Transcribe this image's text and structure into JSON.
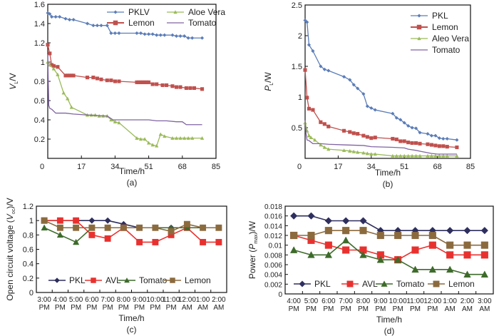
{
  "chart_data": [
    {
      "id": "a",
      "type": "line",
      "caption": "(a)",
      "title": "",
      "xlabel": "Time/h",
      "ylabel": "V_L/V",
      "ylabel_main": "V",
      "ylabel_sub": "L",
      "ylabel_suffix": "/V",
      "xlim": [
        0,
        85
      ],
      "ylim": [
        0,
        1.6
      ],
      "xticks": [
        0,
        17,
        34,
        51,
        68,
        85
      ],
      "yticks": [
        0.2,
        0.4,
        0.6,
        0.8,
        1,
        1.2,
        1.4,
        1.6
      ],
      "ytick_labels": [
        "0.2",
        "0.4",
        "0.6",
        "0.8",
        "1",
        "1.2",
        "1.4",
        "1.6"
      ],
      "legend": "top-right, 2 columns",
      "series": [
        {
          "name": "PKLV",
          "color": "#5b7db8",
          "marker": "diamond",
          "x": [
            0,
            1,
            2,
            4,
            6,
            9,
            11,
            13,
            20,
            23,
            25,
            27,
            30,
            32,
            34,
            36,
            45,
            47,
            49,
            51,
            53,
            55,
            57,
            59,
            63,
            65,
            67,
            69,
            71,
            73,
            78
          ],
          "y": [
            1.51,
            1.5,
            1.47,
            1.47,
            1.47,
            1.45,
            1.44,
            1.44,
            1.4,
            1.38,
            1.38,
            1.38,
            1.38,
            1.3,
            1.3,
            1.3,
            1.3,
            1.3,
            1.29,
            1.29,
            1.29,
            1.28,
            1.28,
            1.28,
            1.28,
            1.27,
            1.27,
            1.27,
            1.25,
            1.25,
            1.25
          ]
        },
        {
          "name": "Lemon",
          "color": "#c0504d",
          "marker": "square",
          "x": [
            0,
            1,
            2,
            3,
            5,
            9,
            10,
            11,
            12,
            13,
            20,
            23,
            25,
            27,
            30,
            32,
            34,
            36,
            45,
            46,
            47,
            48,
            49,
            50,
            51,
            53,
            55,
            58,
            60,
            63,
            65,
            67,
            70,
            72,
            74,
            78
          ],
          "y": [
            1.18,
            1.09,
            0.97,
            0.96,
            0.95,
            0.86,
            0.86,
            0.86,
            0.86,
            0.86,
            0.84,
            0.84,
            0.83,
            0.82,
            0.81,
            0.81,
            0.8,
            0.8,
            0.79,
            0.79,
            0.79,
            0.79,
            0.79,
            0.79,
            0.79,
            0.77,
            0.77,
            0.76,
            0.76,
            0.75,
            0.74,
            0.74,
            0.73,
            0.73,
            0.73,
            0.72
          ]
        },
        {
          "name": "Aloe Vera",
          "color": "#9bbb59",
          "marker": "triangle",
          "x": [
            0,
            1,
            3,
            5,
            8,
            10,
            12,
            20,
            22,
            24,
            26,
            28,
            30,
            32,
            34,
            36,
            45,
            47,
            49,
            51,
            53,
            55,
            57,
            59,
            63,
            65,
            67,
            69,
            71,
            73,
            78
          ],
          "y": [
            1.0,
            0.97,
            0.93,
            0.87,
            0.68,
            0.62,
            0.53,
            0.45,
            0.45,
            0.45,
            0.44,
            0.44,
            0.44,
            0.4,
            0.38,
            0.37,
            0.21,
            0.2,
            0.2,
            0.16,
            0.14,
            0.13,
            0.25,
            0.23,
            0.21,
            0.21,
            0.21,
            0.21,
            0.21,
            0.21,
            0.21
          ]
        },
        {
          "name": "Tomato",
          "color": "#8064a2",
          "marker": "none",
          "x": [
            0,
            0.5,
            1,
            2,
            4,
            9,
            13,
            20,
            30,
            33,
            45,
            51,
            55,
            60,
            65,
            68,
            70,
            72,
            78
          ],
          "y": [
            1.08,
            0.55,
            0.52,
            0.51,
            0.47,
            0.47,
            0.46,
            0.45,
            0.44,
            0.4,
            0.4,
            0.4,
            0.39,
            0.39,
            0.38,
            0.38,
            0.35,
            0.35,
            0.35
          ]
        }
      ]
    },
    {
      "id": "b",
      "type": "line",
      "caption": "(b)",
      "title": "",
      "xlabel": "Time/h",
      "ylabel": "P_L/W",
      "ylabel_main": "P",
      "ylabel_sub": "L",
      "ylabel_suffix": "/W",
      "xlim": [
        0,
        85
      ],
      "ylim": [
        0,
        2.5
      ],
      "xticks": [
        0,
        17,
        34,
        51,
        68,
        85
      ],
      "yticks": [
        0.5,
        1,
        1.5,
        2,
        2.5
      ],
      "ytick_labels": [
        "0.5",
        "1",
        "1.5",
        "2",
        "2.5"
      ],
      "legend": "top-right, 1 column",
      "series": [
        {
          "name": "PKL",
          "color": "#5b7db8",
          "marker": "diamond",
          "x": [
            0,
            1,
            2,
            4,
            8,
            10,
            12,
            20,
            23,
            25,
            27,
            30,
            32,
            34,
            36,
            45,
            47,
            49,
            51,
            53,
            55,
            57,
            59,
            63,
            65,
            67,
            69,
            71,
            73,
            78
          ],
          "y": [
            2.25,
            2.22,
            1.85,
            1.75,
            1.5,
            1.45,
            1.43,
            1.33,
            1.28,
            1.2,
            1.14,
            1.05,
            0.85,
            0.82,
            0.79,
            0.73,
            0.66,
            0.63,
            0.58,
            0.53,
            0.5,
            0.49,
            0.42,
            0.4,
            0.37,
            0.37,
            0.33,
            0.32,
            0.32,
            0.3
          ]
        },
        {
          "name": "Lemon",
          "color": "#c0504d",
          "marker": "square",
          "x": [
            0,
            1,
            2,
            4,
            8,
            10,
            12,
            20,
            23,
            25,
            27,
            30,
            32,
            34,
            36,
            45,
            47,
            49,
            51,
            53,
            55,
            57,
            59,
            63,
            65,
            67,
            69,
            71,
            73,
            78
          ],
          "y": [
            1.44,
            0.99,
            0.81,
            0.79,
            0.59,
            0.56,
            0.52,
            0.45,
            0.43,
            0.41,
            0.4,
            0.37,
            0.35,
            0.33,
            0.34,
            0.32,
            0.31,
            0.28,
            0.28,
            0.26,
            0.25,
            0.25,
            0.24,
            0.23,
            0.22,
            0.21,
            0.2,
            0.2,
            0.19,
            0.18
          ]
        },
        {
          "name": "Aleo Vera",
          "color": "#9bbb59",
          "marker": "triangle",
          "x": [
            0,
            1,
            2,
            3,
            5,
            8,
            10,
            12,
            20,
            23,
            25,
            27,
            30,
            32,
            34,
            36,
            45,
            47,
            49,
            51,
            53,
            55,
            57,
            59,
            63,
            65,
            67,
            69,
            71,
            73,
            78
          ],
          "y": [
            0.58,
            0.45,
            0.37,
            0.34,
            0.3,
            0.22,
            0.18,
            0.15,
            0.13,
            0.12,
            0.11,
            0.1,
            0.09,
            0.08,
            0.07,
            0.07,
            0.04,
            0.04,
            0.04,
            0.04,
            0.04,
            0.04,
            0.04,
            0.04,
            0.04,
            0.04,
            0.04,
            0.04,
            0.04,
            0.04,
            0.04
          ]
        },
        {
          "name": "Tomato",
          "color": "#8064a2",
          "marker": "none",
          "x": [
            0,
            0.5,
            1,
            2,
            4,
            8,
            12,
            20,
            30,
            34,
            45,
            51,
            53,
            57,
            60,
            65,
            68,
            72,
            78
          ],
          "y": [
            0.62,
            0.4,
            0.3,
            0.29,
            0.24,
            0.24,
            0.23,
            0.22,
            0.21,
            0.19,
            0.18,
            0.17,
            0.15,
            0.13,
            0.11,
            0.08,
            0.07,
            0.07,
            0.07
          ]
        }
      ]
    },
    {
      "id": "c",
      "type": "line",
      "caption": "(c)",
      "title": "",
      "xlabel": "Time/h",
      "ylabel": "Open circuit voltage (V_oc)/V",
      "ylabel_prefix": "Open circuit voltage (",
      "ylabel_main": "V",
      "ylabel_sub": "oc",
      "ylabel_suffix": ")/V",
      "ylim": [
        0,
        1.2
      ],
      "yticks": [
        0,
        0.2,
        0.4,
        0.6,
        0.8,
        1,
        1.2
      ],
      "ytick_labels": [
        "0",
        "0.2",
        "0.4",
        "0.6",
        "0.8",
        "1",
        "1.2"
      ],
      "categories": [
        [
          "3:00",
          "PM"
        ],
        [
          "4:00",
          "PM"
        ],
        [
          "5:00",
          "PM"
        ],
        [
          "6:00",
          "PM"
        ],
        [
          "7:00",
          "PM"
        ],
        [
          "8:00",
          "PM"
        ],
        [
          "9:00",
          "PM"
        ],
        [
          "10:00",
          "PM"
        ],
        [
          "11:00",
          "PM"
        ],
        [
          "12:00",
          "AM"
        ],
        [
          "1:00",
          "AM"
        ],
        [
          "2:00",
          "AM"
        ]
      ],
      "legend": "bottom-inside, 1 row",
      "series": [
        {
          "name": "PKL",
          "color": "#2e2f5e",
          "marker": "diamond",
          "values": [
            1.0,
            1.0,
            1.0,
            1.0,
            1.0,
            0.95,
            0.9,
            0.9,
            0.9,
            0.9,
            0.9,
            0.9
          ]
        },
        {
          "name": "AVL",
          "color": "#e8312f",
          "marker": "square",
          "values": [
            1.0,
            1.0,
            1.0,
            0.8,
            0.75,
            0.9,
            0.7,
            0.7,
            0.8,
            0.9,
            0.7,
            0.7
          ]
        },
        {
          "name": "Tomato",
          "color": "#3d6b2a",
          "marker": "triangle",
          "values": [
            0.9,
            0.8,
            0.7,
            0.9,
            0.9,
            0.9,
            0.9,
            0.9,
            0.9,
            0.9,
            0.9,
            0.9
          ]
        },
        {
          "name": "Lemon",
          "color": "#8b6a3e",
          "marker": "square",
          "values": [
            1.0,
            0.9,
            0.9,
            0.9,
            0.9,
            0.9,
            0.9,
            0.9,
            0.85,
            0.95,
            0.9,
            0.9
          ]
        }
      ]
    },
    {
      "id": "d",
      "type": "line",
      "caption": "(d)",
      "title": "",
      "xlabel": "Time/h",
      "ylabel": "Power (P_max)/W",
      "ylabel_prefix": "Power (",
      "ylabel_main": "P",
      "ylabel_sub": "max",
      "ylabel_suffix": ")/W",
      "ylim": [
        0,
        0.018
      ],
      "yticks": [
        0,
        0.002,
        0.004,
        0.006,
        0.008,
        0.01,
        0.012,
        0.014,
        0.016,
        0.018
      ],
      "ytick_labels": [
        "0",
        "0.002",
        "0.004",
        "0.006",
        "0.008",
        "0.01",
        "0.012",
        "0.014",
        "0.016",
        "0.018"
      ],
      "categories": [
        [
          "4:00",
          "PM"
        ],
        [
          "5:00",
          "PM"
        ],
        [
          "6:00",
          "PM"
        ],
        [
          "7:00",
          "PM"
        ],
        [
          "8:00",
          "PM"
        ],
        [
          "9:00",
          "PM"
        ],
        [
          "10:00",
          "PM"
        ],
        [
          "11:00",
          "PM"
        ],
        [
          "12:00",
          "PM"
        ],
        [
          "1:00",
          "AM"
        ],
        [
          "2:00",
          "AM"
        ],
        [
          "3:00",
          "AM"
        ]
      ],
      "legend": "bottom-inside, 1 row",
      "series": [
        {
          "name": "PKL",
          "color": "#2e2f5e",
          "marker": "diamond",
          "values": [
            0.016,
            0.016,
            0.015,
            0.015,
            0.015,
            0.013,
            0.013,
            0.013,
            0.013,
            0.013,
            0.013,
            0.013
          ]
        },
        {
          "name": "AVL",
          "color": "#e8312f",
          "marker": "square",
          "values": [
            0.012,
            0.011,
            0.01,
            0.009,
            0.009,
            0.008,
            0.007,
            0.009,
            0.01,
            0.008,
            0.008,
            0.008
          ]
        },
        {
          "name": "Tomato",
          "color": "#3d6b2a",
          "marker": "triangle",
          "values": [
            0.009,
            0.008,
            0.008,
            0.011,
            0.008,
            0.007,
            0.007,
            0.005,
            0.005,
            0.005,
            0.004,
            0.004
          ]
        },
        {
          "name": "Lemon",
          "color": "#8b6a3e",
          "marker": "square",
          "values": [
            0.012,
            0.012,
            0.013,
            0.013,
            0.013,
            0.012,
            0.012,
            0.012,
            0.012,
            0.01,
            0.01,
            0.01
          ]
        }
      ]
    }
  ]
}
